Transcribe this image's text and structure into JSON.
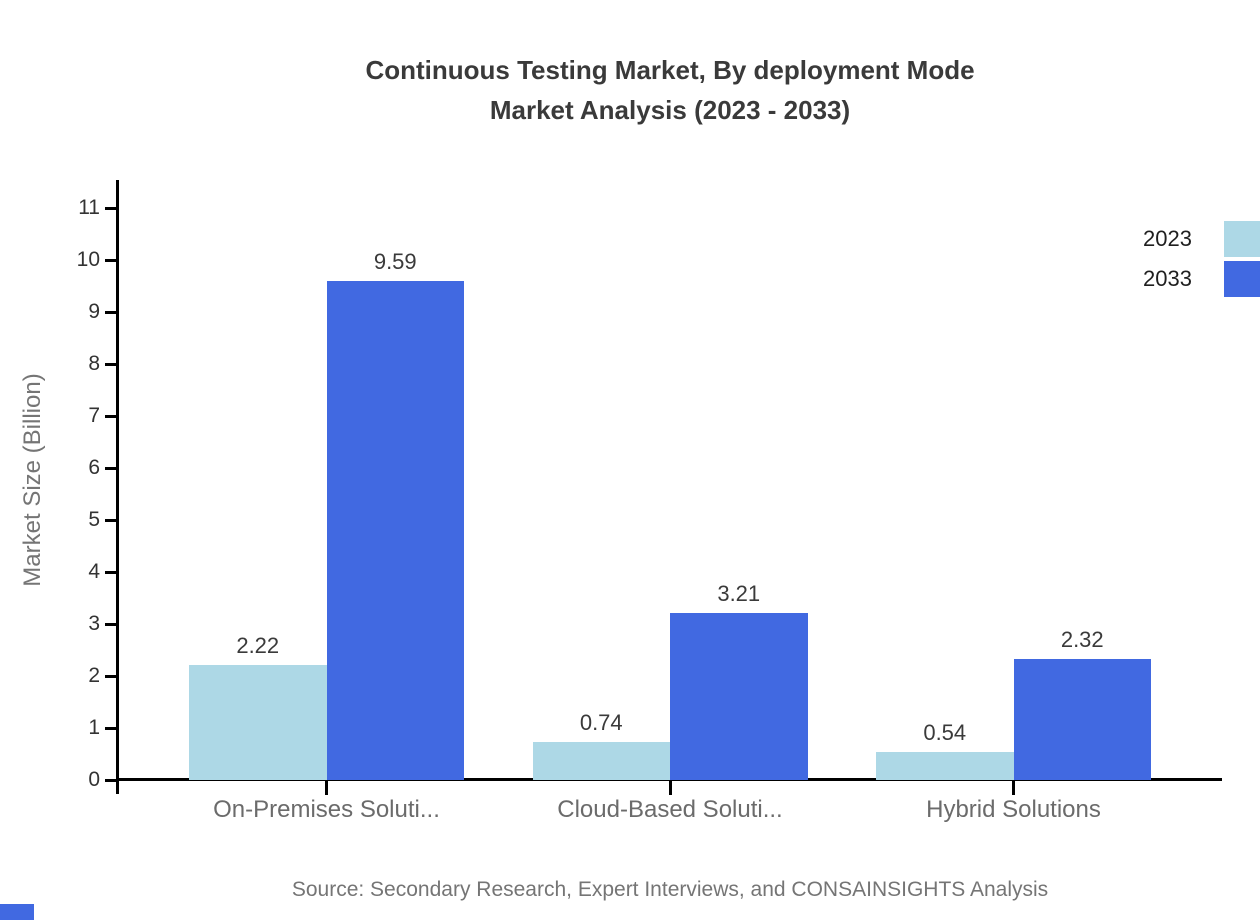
{
  "title": {
    "line1": "Continuous Testing Market, By deployment Mode",
    "line2": "Market Analysis (2023 - 2033)"
  },
  "source": "Source: Secondary Research, Expert Interviews, and CONSAINSIGHTS Analysis",
  "brand_mark_color": "#4169E1",
  "chart_data": {
    "type": "bar",
    "title": "Continuous Testing Market, By deployment Mode Market Analysis (2023 - 2033)",
    "categories": [
      "On-Premises Soluti...",
      "Cloud-Based Soluti...",
      "Hybrid Solutions"
    ],
    "series": [
      {
        "name": "2023",
        "color": "#ADD8E6",
        "values": [
          2.22,
          0.74,
          0.54
        ]
      },
      {
        "name": "2033",
        "color": "#4169E1",
        "values": [
          9.59,
          3.21,
          2.32
        ]
      }
    ],
    "value_labels": true,
    "xlabel": "",
    "ylabel": "Market Size (Billion)",
    "yticks": [
      0,
      1,
      2,
      3,
      4,
      5,
      6,
      7,
      8,
      9,
      10,
      11
    ],
    "ylim": [
      0,
      11.5
    ],
    "grid": false,
    "legend_position": "top-right",
    "axis_color": "#000000",
    "text_color_dark": "#3a3a3a",
    "text_color_muted": "#757575"
  }
}
